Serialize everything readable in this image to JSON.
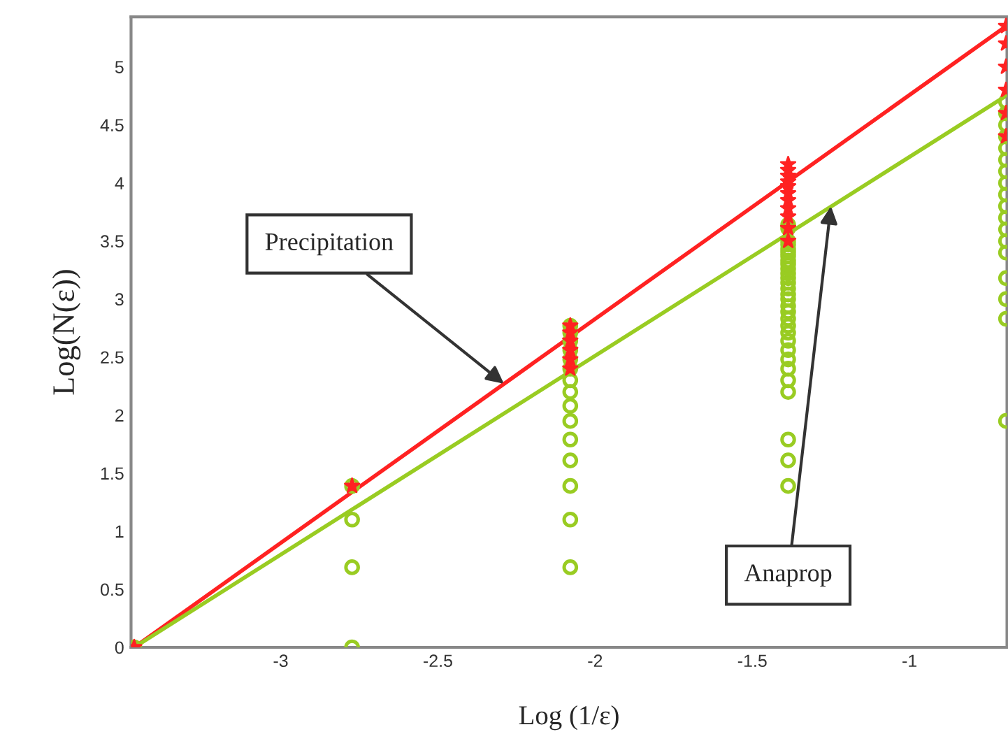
{
  "chart_data": {
    "type": "scatter",
    "xlabel": "Log (1/ε)",
    "ylabel": "Log(N(ε))",
    "xlim": [
      -3.476,
      -0.69
    ],
    "ylim": [
      0,
      5.43
    ],
    "xticks": [
      -3,
      -2.5,
      -2,
      -1.5,
      -1
    ],
    "yticks": [
      0,
      0.5,
      1,
      1.5,
      2,
      2.5,
      3,
      3.5,
      4,
      4.5,
      5
    ],
    "grid": false,
    "series": [
      {
        "type": "line",
        "color": "#ff2222",
        "x": [
          -3.466,
          -0.693
        ],
        "values": [
          0,
          5.35
        ],
        "marker": "none",
        "line_style": "solid"
      },
      {
        "type": "line",
        "color": "#99cc22",
        "x": [
          -3.466,
          -0.693
        ],
        "values": [
          0,
          4.75
        ],
        "marker": "none",
        "line_style": "solid"
      },
      {
        "color": "#99cc22",
        "marker": "circle",
        "x": [
          -3.466,
          -2.773,
          -2.773,
          -2.773,
          -2.773,
          -2.079,
          -2.079,
          -2.079,
          -2.079,
          -2.079,
          -2.079,
          -2.079,
          -2.079,
          -2.079,
          -2.079,
          -2.079,
          -2.079,
          -2.079,
          -2.079,
          -2.079,
          -1.386,
          -1.386,
          -1.386,
          -1.386,
          -1.386,
          -1.386,
          -1.386,
          -1.386,
          -1.386,
          -1.386,
          -1.386,
          -1.386,
          -1.386,
          -1.386,
          -1.386,
          -1.386,
          -1.386,
          -1.386,
          -1.386,
          -1.386,
          -1.386,
          -1.386,
          -1.386,
          -1.386,
          -1.386,
          -1.386,
          -1.386,
          -1.386,
          -1.386,
          -1.386,
          -0.693,
          -0.693,
          -0.693,
          -0.693,
          -0.693,
          -0.693,
          -0.693,
          -0.693,
          -0.693,
          -0.693,
          -0.693,
          -0.693,
          -0.693,
          -0.693,
          -0.693,
          -0.693,
          -0.693,
          -0.693
        ],
        "values": [
          0,
          0,
          0.69,
          1.1,
          1.39,
          0.69,
          1.1,
          1.39,
          1.61,
          1.79,
          1.95,
          2.08,
          2.2,
          2.3,
          2.4,
          2.48,
          2.56,
          2.64,
          2.71,
          2.77,
          1.39,
          1.61,
          1.79,
          2.2,
          2.3,
          2.4,
          2.48,
          2.56,
          2.64,
          2.71,
          2.77,
          2.83,
          2.89,
          2.94,
          3.0,
          3.04,
          3.09,
          3.14,
          3.18,
          3.22,
          3.26,
          3.3,
          3.33,
          3.37,
          3.4,
          3.43,
          3.47,
          3.5,
          3.61,
          3.64,
          1.95,
          2.83,
          3.0,
          3.18,
          3.4,
          3.5,
          3.6,
          3.7,
          3.8,
          3.9,
          4.0,
          4.1,
          4.2,
          4.3,
          4.4,
          4.5,
          4.6,
          4.7
        ]
      },
      {
        "color": "#ff2222",
        "marker": "star",
        "x": [
          -3.466,
          -2.773,
          -2.079,
          -2.079,
          -2.079,
          -2.079,
          -2.079,
          -2.079,
          -1.386,
          -1.386,
          -1.386,
          -1.386,
          -1.386,
          -1.386,
          -1.386,
          -1.386,
          -1.386,
          -1.386,
          -1.386,
          -0.693,
          -0.693,
          -0.693,
          -0.693,
          -0.693,
          -0.693
        ],
        "values": [
          0,
          1.39,
          2.4,
          2.48,
          2.56,
          2.64,
          2.71,
          2.77,
          3.5,
          3.61,
          3.71,
          3.78,
          3.85,
          3.91,
          3.97,
          4.01,
          4.06,
          4.11,
          4.16,
          4.4,
          4.6,
          4.8,
          5.0,
          5.2,
          5.35
        ]
      }
    ],
    "annotations": [
      {
        "text": "Precipitation",
        "x": -2.29,
        "y": 2.27
      },
      {
        "text": "Anaprop",
        "x": -1.25,
        "y": 3.8
      }
    ]
  }
}
